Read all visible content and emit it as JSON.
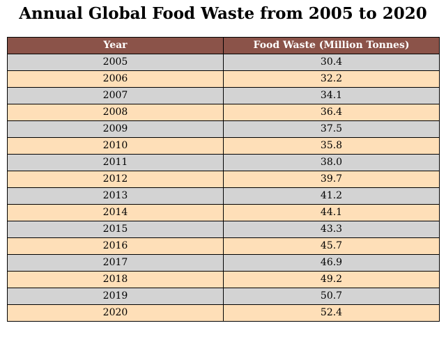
{
  "chart_data": {
    "type": "table",
    "title": "Annual Global Food Waste from 2005 to 2020",
    "columns": [
      "Year",
      "Food Waste (Million Tonnes)"
    ],
    "rows": [
      [
        "2005",
        "30.4"
      ],
      [
        "2006",
        "32.2"
      ],
      [
        "2007",
        "34.1"
      ],
      [
        "2008",
        "36.4"
      ],
      [
        "2009",
        "37.5"
      ],
      [
        "2010",
        "35.8"
      ],
      [
        "2011",
        "38.0"
      ],
      [
        "2012",
        "39.7"
      ],
      [
        "2013",
        "41.2"
      ],
      [
        "2014",
        "44.1"
      ],
      [
        "2015",
        "43.3"
      ],
      [
        "2016",
        "45.7"
      ],
      [
        "2017",
        "46.9"
      ],
      [
        "2018",
        "49.2"
      ],
      [
        "2019",
        "50.7"
      ],
      [
        "2020",
        "52.4"
      ]
    ]
  },
  "colors": {
    "header_bg": "#8b5349",
    "header_text": "#ffffff",
    "row_even": "#d3d3d3",
    "row_odd": "#fedfb8",
    "border": "#000000"
  }
}
